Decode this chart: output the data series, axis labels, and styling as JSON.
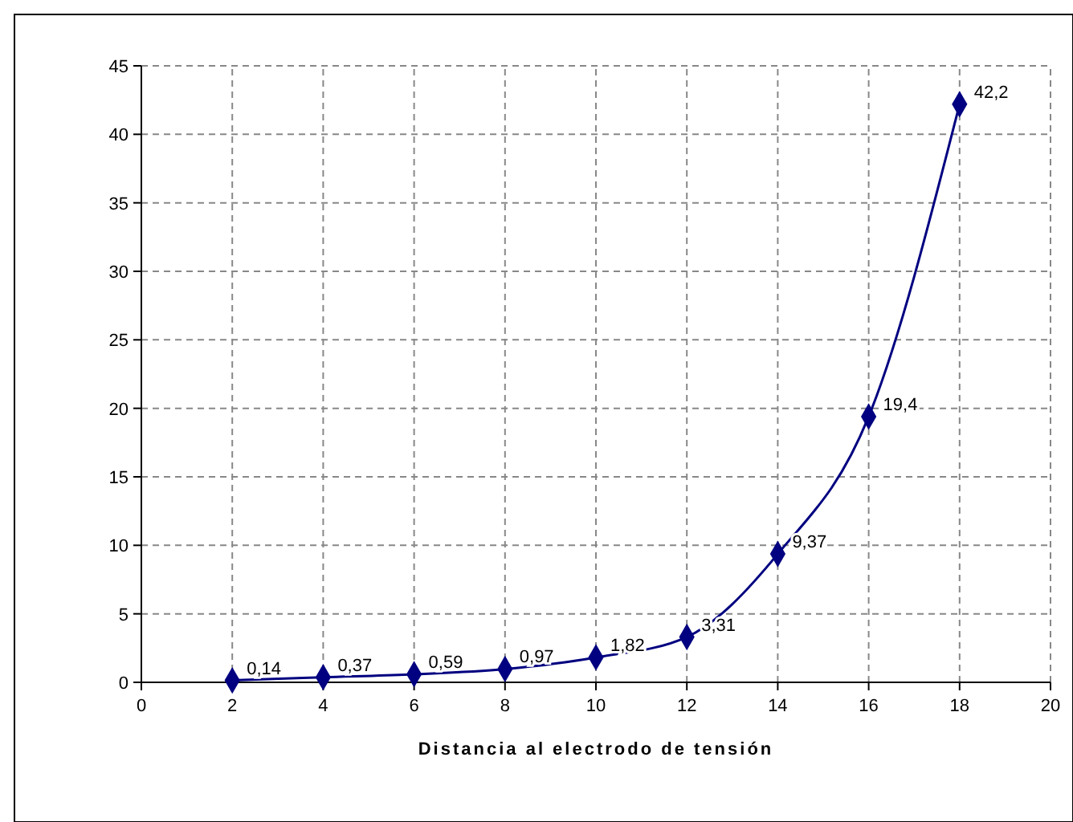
{
  "chart_data": {
    "type": "line",
    "xlabel": "Distancia al electrodo de tensión",
    "x": [
      2,
      4,
      6,
      8,
      10,
      12,
      14,
      16,
      18
    ],
    "series": [
      {
        "color": "#000080",
        "values": [
          0.14,
          0.37,
          0.59,
          0.97,
          1.82,
          3.31,
          9.37,
          19.4,
          42.2
        ],
        "value_labels": [
          "0,14",
          "0,37",
          "0,59",
          "0,97",
          "1,82",
          "3,31",
          "9,37",
          "19,4",
          "42,2"
        ]
      }
    ],
    "xlim": [
      0,
      20
    ],
    "xticks": [
      0,
      2,
      4,
      6,
      8,
      10,
      12,
      14,
      16,
      18,
      20
    ],
    "ylim": [
      0,
      45
    ],
    "yticks": [
      0,
      5,
      10,
      15,
      20,
      25,
      30,
      35,
      40,
      45
    ],
    "grid": true,
    "marker": "diamond",
    "line_style": "solid"
  }
}
